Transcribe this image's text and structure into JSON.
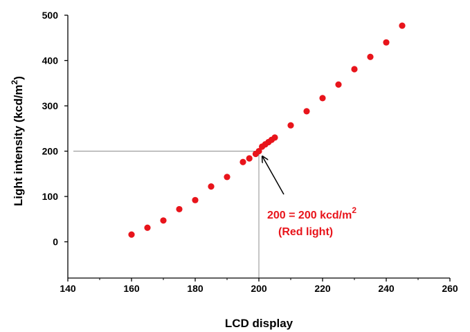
{
  "chart_data": {
    "type": "scatter",
    "xlabel": "LCD display",
    "ylabel": "Light intensity (kcd/m",
    "ylabel_sup": "2",
    "ylabel_close": ")",
    "xlim": [
      140,
      260
    ],
    "ylim": [
      -80,
      500
    ],
    "x_ticks": [
      140,
      160,
      180,
      200,
      220,
      240,
      260
    ],
    "y_ticks": [
      0,
      100,
      200,
      300,
      400,
      500
    ],
    "grid": false,
    "marker_color": "#e8141b",
    "annotation_color": "#e8141b",
    "series": [
      {
        "x": [
          160,
          165,
          170,
          175,
          180,
          185,
          190,
          195,
          197,
          199,
          200,
          201,
          202,
          203,
          204,
          205,
          210,
          215,
          220,
          225,
          230,
          235,
          240,
          245
        ],
        "y": [
          16,
          31,
          47,
          72,
          92,
          122,
          143,
          176,
          184,
          194,
          200,
          210,
          215,
          220,
          225,
          230,
          257,
          288,
          317,
          347,
          381,
          408,
          440,
          477
        ]
      }
    ],
    "reference_point": {
      "x": 200,
      "y": 200
    },
    "annotation": {
      "line1": "200 = 200 kcd/m",
      "line1_sup": "2",
      "line2": "(Red light)"
    }
  }
}
